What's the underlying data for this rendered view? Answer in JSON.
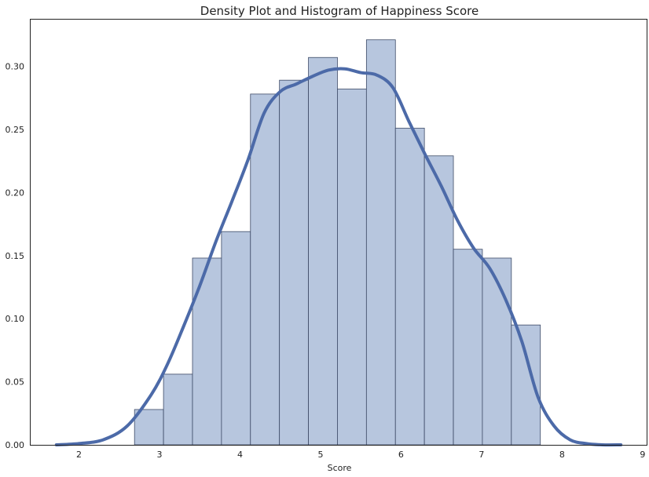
{
  "chart_data": {
    "type": "bar",
    "title": "Density Plot and Histogram of Happiness Score",
    "xlabel": "Score",
    "ylabel": "",
    "xlim": [
      1.4,
      9.05
    ],
    "ylim": [
      0.0,
      0.337
    ],
    "xticks": [
      2,
      3,
      4,
      5,
      6,
      7,
      8,
      9
    ],
    "yticks": [
      0.0,
      0.05,
      0.1,
      0.15,
      0.2,
      0.25,
      0.3
    ],
    "ytick_labels": [
      "0.00",
      "0.05",
      "0.10",
      "0.15",
      "0.20",
      "0.25",
      "0.30"
    ],
    "grid": false,
    "histogram": {
      "bin_edges": [
        2.69,
        3.05,
        3.41,
        3.77,
        4.13,
        4.49,
        4.85,
        5.21,
        5.57,
        5.93,
        6.29,
        6.65,
        7.01,
        7.37,
        7.73
      ],
      "density": [
        0.028,
        0.056,
        0.148,
        0.169,
        0.278,
        0.289,
        0.307,
        0.282,
        0.321,
        0.251,
        0.229,
        0.155,
        0.148,
        0.095
      ],
      "color": "#b7c6de",
      "edgecolor": "#3d4a66"
    },
    "kde": {
      "color": "#4c6aa8",
      "x": [
        1.72,
        2.0,
        2.3,
        2.6,
        2.9,
        3.1,
        3.3,
        3.5,
        3.7,
        3.9,
        4.1,
        4.3,
        4.5,
        4.7,
        4.9,
        5.1,
        5.3,
        5.5,
        5.7,
        5.9,
        6.1,
        6.3,
        6.5,
        6.7,
        6.9,
        7.1,
        7.3,
        7.5,
        7.7,
        7.9,
        8.1,
        8.3,
        8.5,
        8.73
      ],
      "y": [
        0.0,
        0.001,
        0.004,
        0.015,
        0.04,
        0.064,
        0.094,
        0.126,
        0.161,
        0.193,
        0.226,
        0.263,
        0.28,
        0.286,
        0.292,
        0.297,
        0.298,
        0.295,
        0.293,
        0.283,
        0.256,
        0.23,
        0.205,
        0.178,
        0.156,
        0.14,
        0.115,
        0.082,
        0.038,
        0.015,
        0.004,
        0.001,
        0.0,
        0.0
      ]
    }
  }
}
